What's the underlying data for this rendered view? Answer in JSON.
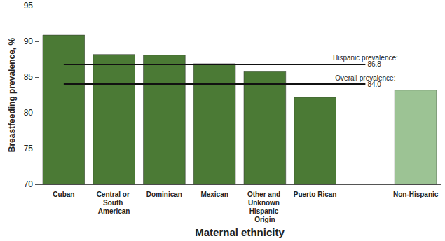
{
  "chart_data": {
    "type": "bar",
    "x_label": "Maternal ethnicity",
    "y_label": "Breastfeeding prevalence, %",
    "categories": [
      "Cuban",
      "Central or South American",
      "Dominican",
      "Mexican",
      "Other and Unknown Hispanic Origin",
      "Puerto Rican",
      null,
      "Non-Hispanic"
    ],
    "values": [
      90.9,
      88.2,
      88.1,
      86.9,
      85.8,
      82.2,
      null,
      83.2
    ],
    "colors": [
      "#4b7a35",
      "#4b7a35",
      "#4b7a35",
      "#4b7a35",
      "#4b7a35",
      "#4b7a35",
      "#4b7a35",
      "#9cc394"
    ],
    "ylim": [
      70,
      95
    ],
    "yticks": [
      70,
      75,
      80,
      85,
      90,
      95
    ],
    "grid": false,
    "reference_lines": [
      {
        "name": "Hispanic prevalence:",
        "value": 86.8,
        "label": "86.8"
      },
      {
        "name": "Overall prevalence:",
        "value": 84,
        "label": "84.0"
      }
    ]
  }
}
